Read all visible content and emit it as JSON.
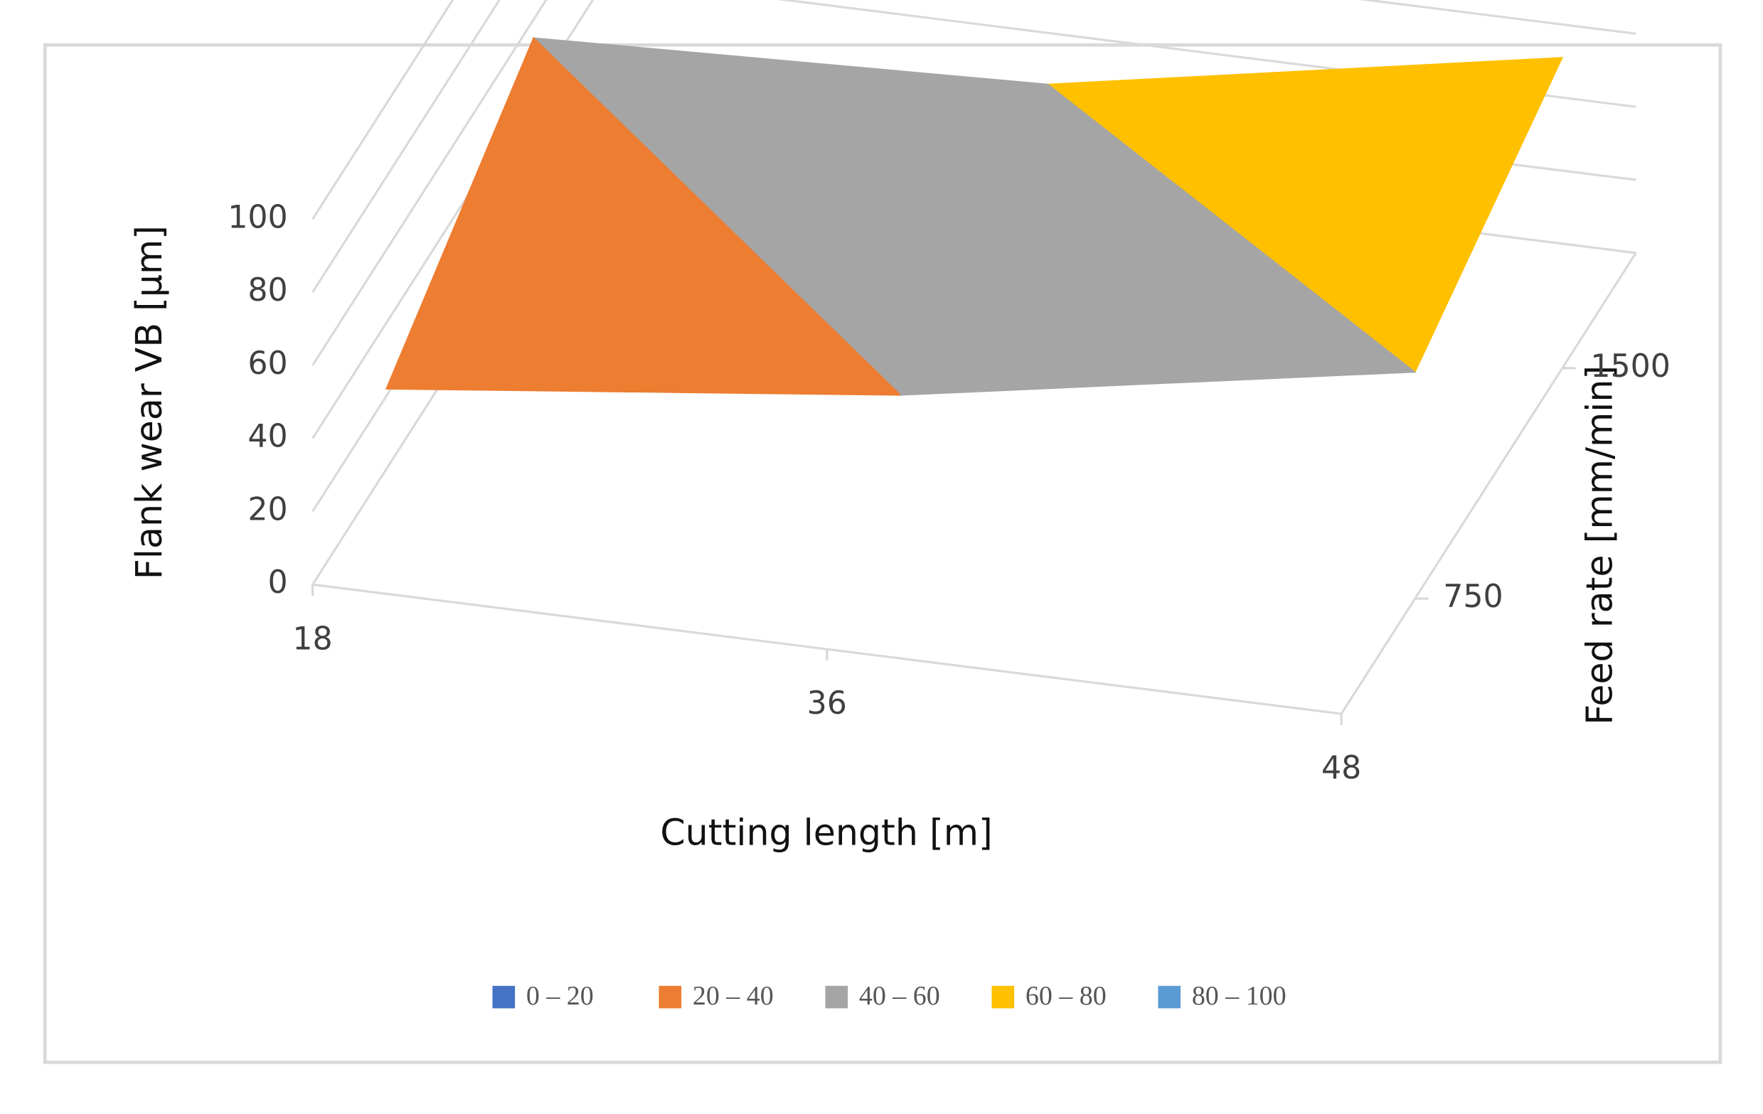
{
  "chart_data": {
    "type": "surface",
    "z_label": "Flank wear VB [µm]",
    "x_label": "Cutting length [m]",
    "depth_label": "Feed rate [mm/min]",
    "categories": [
      "18",
      "36",
      "48"
    ],
    "series": [
      {
        "name": "750",
        "values": [
          22,
          38,
          62
        ]
      },
      {
        "name": "1500",
        "values": [
          55,
          60,
          85
        ]
      }
    ],
    "zlim": [
      0,
      100
    ],
    "zticks": [
      0,
      20,
      40,
      60,
      80,
      100
    ],
    "bands": [
      {
        "name": "0 – 20",
        "from": 0,
        "to": 20,
        "color": "#4472c4"
      },
      {
        "name": "20 – 40",
        "from": 20,
        "to": 40,
        "color": "#ed7d31"
      },
      {
        "name": "40 – 60",
        "from": 40,
        "to": 60,
        "color": "#a5a5a5"
      },
      {
        "name": "60 – 80",
        "from": 60,
        "to": 80,
        "color": "#ffc000"
      },
      {
        "name": "80 – 100",
        "from": 80,
        "to": 100,
        "color": "#5b9bd5"
      }
    ]
  }
}
